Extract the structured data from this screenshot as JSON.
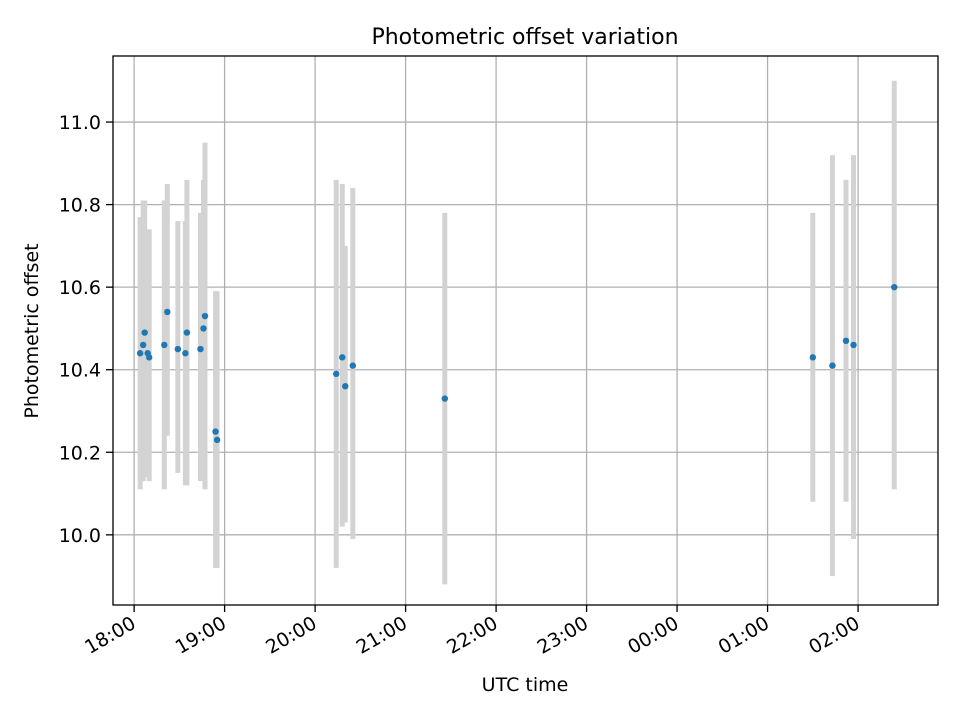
{
  "chart_data": {
    "type": "scatter",
    "title": "Photometric offset variation",
    "xlabel": "UTC time",
    "ylabel": "Photometric offset",
    "x_unit": "UTC time (HH:MM), night crossing midnight; times after 00:00 belong to the following day",
    "xlim": [
      "17:46",
      "02:53"
    ],
    "ylim": [
      9.83,
      11.16
    ],
    "x_ticks": [
      "18:00",
      "19:00",
      "20:00",
      "21:00",
      "22:00",
      "23:00",
      "00:00",
      "01:00",
      "02:00"
    ],
    "y_ticks": [
      10.0,
      10.2,
      10.4,
      10.6,
      10.8,
      11.0
    ],
    "grid": true,
    "colors": {
      "point": "#1f77b4",
      "errorbar": "#d3d3d3",
      "grid": "#b0b0b0"
    },
    "series": [
      {
        "points": [
          {
            "x": "18:04",
            "y": 10.44,
            "lo": 10.11,
            "hi": 10.77
          },
          {
            "x": "18:06",
            "y": 10.46,
            "lo": 10.13,
            "hi": 10.81
          },
          {
            "x": "18:07",
            "y": 10.49,
            "lo": 10.14,
            "hi": 10.81
          },
          {
            "x": "18:09",
            "y": 10.44,
            "lo": 10.14,
            "hi": 10.74
          },
          {
            "x": "18:10",
            "y": 10.43,
            "lo": 10.13,
            "hi": 10.74
          },
          {
            "x": "18:20",
            "y": 10.46,
            "lo": 10.11,
            "hi": 10.81
          },
          {
            "x": "18:22",
            "y": 10.54,
            "lo": 10.24,
            "hi": 10.85
          },
          {
            "x": "18:29",
            "y": 10.45,
            "lo": 10.15,
            "hi": 10.76
          },
          {
            "x": "18:34",
            "y": 10.44,
            "lo": 10.12,
            "hi": 10.76
          },
          {
            "x": "18:35",
            "y": 10.49,
            "lo": 10.12,
            "hi": 10.86
          },
          {
            "x": "18:44",
            "y": 10.45,
            "lo": 10.13,
            "hi": 10.78
          },
          {
            "x": "18:46",
            "y": 10.5,
            "lo": 10.13,
            "hi": 10.86
          },
          {
            "x": "18:47",
            "y": 10.53,
            "lo": 10.11,
            "hi": 10.95
          },
          {
            "x": "18:54",
            "y": 10.25,
            "lo": 9.92,
            "hi": 10.59
          },
          {
            "x": "18:55",
            "y": 10.23,
            "lo": 9.92,
            "hi": 10.59
          },
          {
            "x": "20:14",
            "y": 10.39,
            "lo": 9.92,
            "hi": 10.86
          },
          {
            "x": "20:18",
            "y": 10.43,
            "lo": 10.02,
            "hi": 10.85
          },
          {
            "x": "20:20",
            "y": 10.36,
            "lo": 10.03,
            "hi": 10.7
          },
          {
            "x": "20:25",
            "y": 10.41,
            "lo": 9.99,
            "hi": 10.84
          },
          {
            "x": "21:26",
            "y": 10.33,
            "lo": 9.88,
            "hi": 10.78
          },
          {
            "x": "01:30",
            "y": 10.43,
            "lo": 10.08,
            "hi": 10.78
          },
          {
            "x": "01:43",
            "y": 10.41,
            "lo": 9.9,
            "hi": 10.92
          },
          {
            "x": "01:52",
            "y": 10.47,
            "lo": 10.08,
            "hi": 10.86
          },
          {
            "x": "01:57",
            "y": 10.46,
            "lo": 9.99,
            "hi": 10.92
          },
          {
            "x": "02:24",
            "y": 10.6,
            "lo": 10.11,
            "hi": 11.1
          }
        ]
      }
    ]
  }
}
